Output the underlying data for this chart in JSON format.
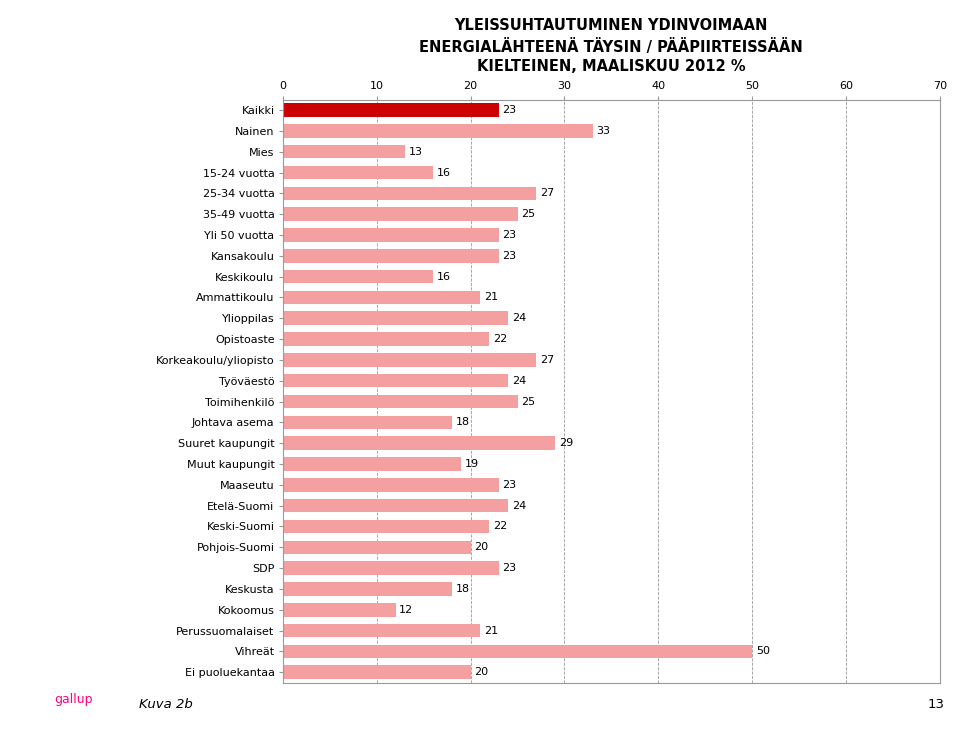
{
  "title_lines": [
    "YLEISSUHTAUTUMINEN YDINVOIMAAN",
    "ENERGIALÄHTEENÄ TÄYSIN / PÄÄPIIRTEISSÄÄN",
    "KIELTEINEN, MAALISKUU 2012 %"
  ],
  "categories": [
    "Kaikki",
    "Nainen",
    "Mies",
    "15-24 vuotta",
    "25-34 vuotta",
    "35-49 vuotta",
    "Yli 50 vuotta",
    "Kansakoulu",
    "Keskikoulu",
    "Ammattikoulu",
    "Ylioppilas",
    "Opistoaste",
    "Korkeakoulu/yliopisto",
    "Työväestö",
    "Toimihenkilö",
    "Johtava asema",
    "Suuret kaupungit",
    "Muut kaupungit",
    "Maaseutu",
    "Etelä-Suomi",
    "Keski-Suomi",
    "Pohjois-Suomi",
    "SDP",
    "Keskusta",
    "Kokoomus",
    "Perussuomalaiset",
    "Vihreät",
    "Ei puoluekantaa"
  ],
  "values": [
    23,
    33,
    13,
    16,
    27,
    25,
    23,
    23,
    16,
    21,
    24,
    22,
    27,
    24,
    25,
    18,
    29,
    19,
    23,
    24,
    22,
    20,
    23,
    18,
    12,
    21,
    50,
    20
  ],
  "bar_color_default": "#F4A0A0",
  "bar_color_kaikki": "#CC0000",
  "xlim": [
    0,
    70
  ],
  "xticks": [
    0,
    10,
    20,
    30,
    40,
    50,
    60,
    70
  ],
  "grid_color": "#999999",
  "label_fontsize": 8.0,
  "value_fontsize": 8.0,
  "title_fontsize": 10.5,
  "figure_bg": "#ffffff",
  "axes_bg": "#ffffff",
  "kuva_text": "Kuva 2b",
  "page_number": "13"
}
